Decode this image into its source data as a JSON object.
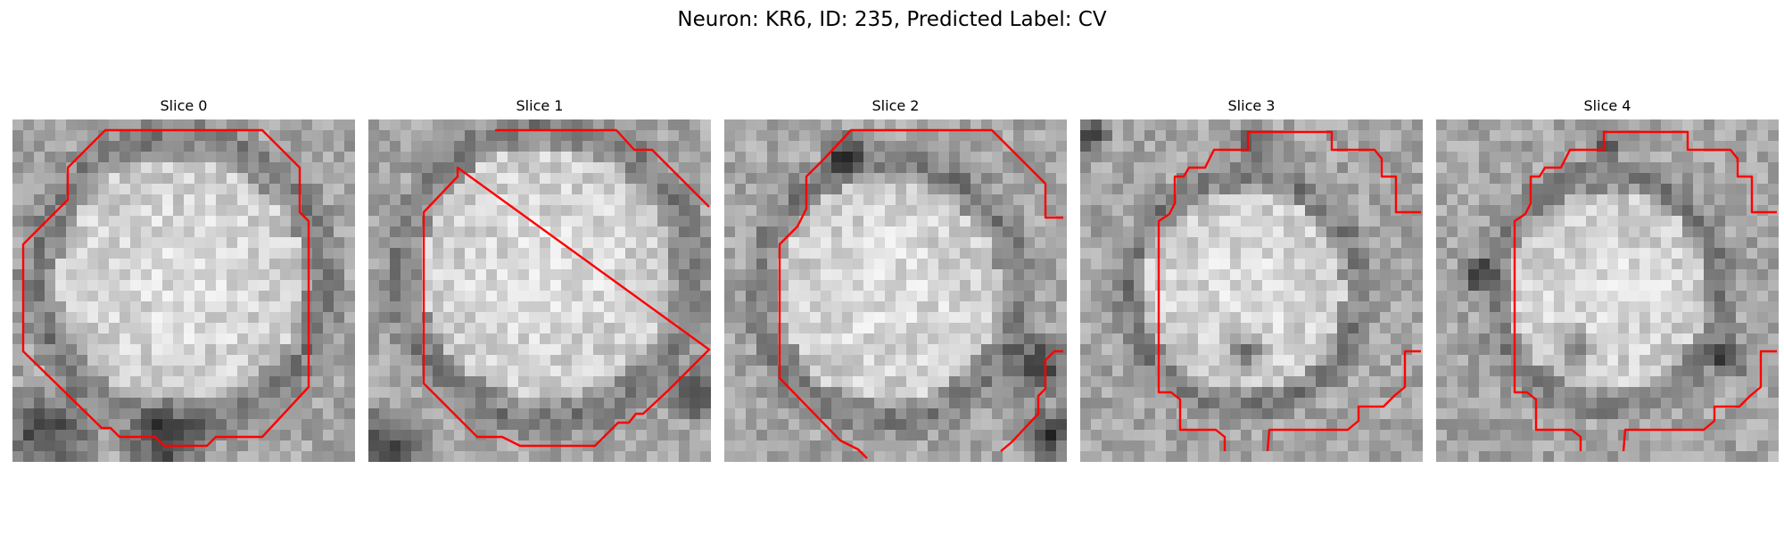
{
  "figure": {
    "title": "Neuron: KR6, ID: 235, Predicted Label: CV",
    "contour_color": "#ff0000"
  },
  "slices": [
    {
      "label": "Slice 0"
    },
    {
      "label": "Slice 1"
    },
    {
      "label": "Slice 2"
    },
    {
      "label": "Slice 3"
    },
    {
      "label": "Slice 4"
    }
  ]
}
